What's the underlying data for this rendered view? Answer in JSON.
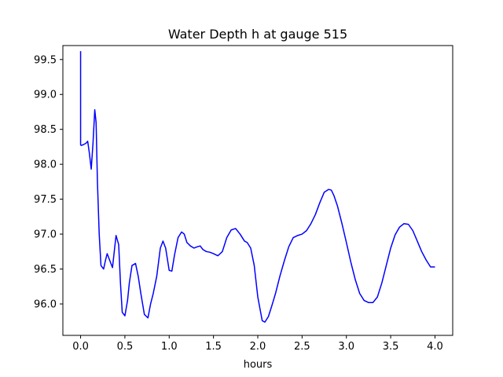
{
  "chart_data": {
    "type": "line",
    "title": "Water Depth h at gauge 515",
    "xlabel": "hours",
    "ylabel": "",
    "xlim": [
      -0.2,
      4.2
    ],
    "ylim": [
      95.55,
      99.7
    ],
    "xticks": [
      0.0,
      0.5,
      1.0,
      1.5,
      2.0,
      2.5,
      3.0,
      3.5,
      4.0
    ],
    "xtick_labels": [
      "0.0",
      "0.5",
      "1.0",
      "1.5",
      "2.0",
      "2.5",
      "3.0",
      "3.5",
      "4.0"
    ],
    "yticks": [
      96.0,
      96.5,
      97.0,
      97.5,
      98.0,
      98.5,
      99.0,
      99.5
    ],
    "ytick_labels": [
      "96.0",
      "96.5",
      "97.0",
      "97.5",
      "98.0",
      "98.5",
      "99.0",
      "99.5"
    ],
    "grid": false,
    "series": [
      {
        "color": "#0000ff",
        "x": [
          0.0,
          0.0,
          0.005,
          0.03,
          0.06,
          0.08,
          0.1,
          0.12,
          0.14,
          0.16,
          0.175,
          0.19,
          0.21,
          0.23,
          0.26,
          0.28,
          0.3,
          0.33,
          0.36,
          0.38,
          0.4,
          0.43,
          0.45,
          0.47,
          0.5,
          0.53,
          0.55,
          0.58,
          0.62,
          0.65,
          0.68,
          0.72,
          0.76,
          0.79,
          0.82,
          0.86,
          0.9,
          0.93,
          0.96,
          1.0,
          1.03,
          1.06,
          1.1,
          1.14,
          1.17,
          1.2,
          1.24,
          1.28,
          1.32,
          1.35,
          1.38,
          1.42,
          1.46,
          1.5,
          1.55,
          1.6,
          1.65,
          1.7,
          1.75,
          1.8,
          1.85,
          1.88,
          1.92,
          1.96,
          2.0,
          2.05,
          2.08,
          2.12,
          2.16,
          2.2,
          2.25,
          2.3,
          2.35,
          2.4,
          2.45,
          2.5,
          2.55,
          2.6,
          2.65,
          2.7,
          2.75,
          2.8,
          2.83,
          2.86,
          2.9,
          2.95,
          3.0,
          3.05,
          3.1,
          3.15,
          3.2,
          3.25,
          3.3,
          3.35,
          3.4,
          3.45,
          3.5,
          3.55,
          3.6,
          3.65,
          3.7,
          3.75,
          3.8,
          3.85,
          3.9,
          3.95,
          4.0
        ],
        "y": [
          99.62,
          98.28,
          98.27,
          98.28,
          98.3,
          98.33,
          98.15,
          97.93,
          98.3,
          98.78,
          98.6,
          97.75,
          97.0,
          96.55,
          96.5,
          96.62,
          96.72,
          96.62,
          96.52,
          96.75,
          96.98,
          96.85,
          96.3,
          95.88,
          95.83,
          96.05,
          96.3,
          96.55,
          96.58,
          96.4,
          96.15,
          95.85,
          95.8,
          96.0,
          96.15,
          96.4,
          96.8,
          96.9,
          96.8,
          96.48,
          96.47,
          96.7,
          96.95,
          97.03,
          97.0,
          96.88,
          96.83,
          96.8,
          96.82,
          96.83,
          96.78,
          96.75,
          96.74,
          96.72,
          96.69,
          96.75,
          96.95,
          97.06,
          97.08,
          97.0,
          96.9,
          96.88,
          96.8,
          96.55,
          96.1,
          95.76,
          95.74,
          95.82,
          95.98,
          96.15,
          96.4,
          96.62,
          96.82,
          96.95,
          96.98,
          97.0,
          97.05,
          97.15,
          97.28,
          97.45,
          97.6,
          97.64,
          97.63,
          97.55,
          97.4,
          97.15,
          96.88,
          96.6,
          96.35,
          96.15,
          96.05,
          96.02,
          96.02,
          96.1,
          96.3,
          96.55,
          96.8,
          96.99,
          97.1,
          97.15,
          97.14,
          97.05,
          96.9,
          96.75,
          96.63,
          96.53,
          96.53
        ]
      }
    ]
  }
}
